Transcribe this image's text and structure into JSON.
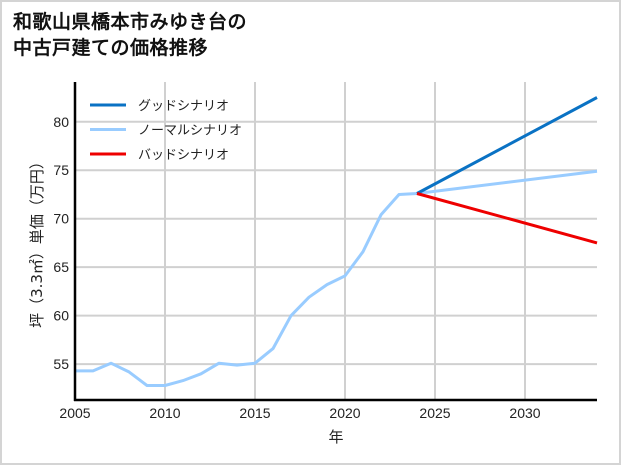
{
  "title": {
    "line1": "和歌山県橋本市みゆき台の",
    "line2": "中古戸建ての価格推移"
  },
  "colors": {
    "good": "#0a72c4",
    "normal": "#99ccff",
    "bad": "#ee0000",
    "grid": "#d0d0d0",
    "axis": "#000000"
  },
  "chart_data": {
    "type": "line",
    "title": "和歌山県橋本市みゆき台の中古戸建ての価格推移",
    "xlabel": "年",
    "ylabel": "坪（3.3㎡）単価（万円）",
    "xlim": [
      2005,
      2034
    ],
    "ylim": [
      51.3,
      84.1
    ],
    "xticks": [
      2005,
      2010,
      2015,
      2020,
      2025,
      2030
    ],
    "yticks": [
      55,
      60,
      65,
      70,
      75,
      80
    ],
    "grid": true,
    "legend_position": "upper left",
    "series": [
      {
        "name": "グッドシナリオ",
        "color": "#0a72c4",
        "x": [
          2024,
          2034
        ],
        "values": [
          72.6,
          82.5
        ]
      },
      {
        "name": "ノーマルシナリオ",
        "color": "#99ccff",
        "x": [
          2005,
          2006,
          2007,
          2008,
          2009,
          2010,
          2011,
          2012,
          2013,
          2014,
          2015,
          2016,
          2017,
          2018,
          2019,
          2020,
          2021,
          2022,
          2023,
          2024,
          2034
        ],
        "values": [
          54.3,
          54.3,
          55.1,
          54.2,
          52.8,
          52.8,
          53.3,
          54.0,
          55.1,
          54.9,
          55.1,
          56.6,
          60.0,
          61.9,
          63.2,
          64.1,
          66.6,
          70.4,
          72.5,
          72.6,
          74.9
        ]
      },
      {
        "name": "バッドシナリオ",
        "color": "#ee0000",
        "x": [
          2024,
          2034
        ],
        "values": [
          72.6,
          67.5
        ]
      }
    ]
  }
}
